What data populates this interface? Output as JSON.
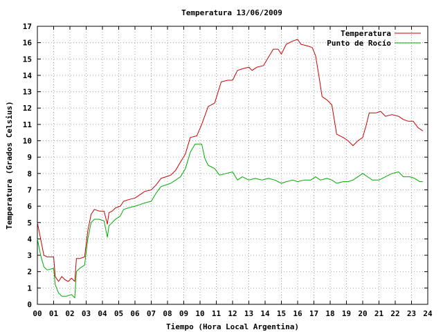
{
  "chart_data": {
    "type": "line",
    "title": "Temperatura 13/06/2009",
    "xlabel": "Tiempo (Hora Local Argentina)",
    "ylabel": "Temperatura (Grados Celsius)",
    "xlim": [
      0,
      24
    ],
    "ylim": [
      0,
      17
    ],
    "x_ticks": [
      "00",
      "01",
      "02",
      "03",
      "04",
      "05",
      "06",
      "07",
      "08",
      "09",
      "10",
      "11",
      "12",
      "13",
      "14",
      "15",
      "16",
      "17",
      "18",
      "19",
      "20",
      "21",
      "22",
      "23",
      "24"
    ],
    "y_ticks": [
      "0",
      "1",
      "2",
      "3",
      "4",
      "5",
      "6",
      "7",
      "8",
      "9",
      "10",
      "11",
      "12",
      "13",
      "14",
      "15",
      "16",
      "17"
    ],
    "grid": true,
    "legend_position": "top-right",
    "series": [
      {
        "name": "Temperatura",
        "color": "#cc0000",
        "points": [
          [
            0.0,
            5.0
          ],
          [
            0.2,
            4.0
          ],
          [
            0.4,
            3.0
          ],
          [
            0.6,
            2.9
          ],
          [
            1.0,
            2.9
          ],
          [
            1.1,
            1.7
          ],
          [
            1.3,
            1.4
          ],
          [
            1.5,
            1.7
          ],
          [
            1.7,
            1.5
          ],
          [
            1.9,
            1.4
          ],
          [
            2.1,
            1.6
          ],
          [
            2.3,
            1.4
          ],
          [
            2.4,
            2.8
          ],
          [
            2.6,
            2.8
          ],
          [
            2.9,
            2.9
          ],
          [
            3.1,
            4.5
          ],
          [
            3.3,
            5.5
          ],
          [
            3.5,
            5.8
          ],
          [
            3.8,
            5.7
          ],
          [
            4.1,
            5.7
          ],
          [
            4.3,
            4.9
          ],
          [
            4.4,
            5.6
          ],
          [
            4.6,
            5.7
          ],
          [
            4.8,
            5.9
          ],
          [
            5.1,
            6.0
          ],
          [
            5.3,
            6.3
          ],
          [
            5.6,
            6.4
          ],
          [
            6.0,
            6.5
          ],
          [
            6.3,
            6.7
          ],
          [
            6.6,
            6.9
          ],
          [
            7.0,
            7.0
          ],
          [
            7.3,
            7.3
          ],
          [
            7.6,
            7.7
          ],
          [
            7.9,
            7.8
          ],
          [
            8.2,
            7.9
          ],
          [
            8.5,
            8.2
          ],
          [
            8.8,
            8.7
          ],
          [
            9.1,
            9.2
          ],
          [
            9.4,
            10.2
          ],
          [
            9.8,
            10.3
          ],
          [
            10.1,
            11.0
          ],
          [
            10.5,
            12.1
          ],
          [
            10.9,
            12.3
          ],
          [
            11.3,
            13.6
          ],
          [
            11.7,
            13.7
          ],
          [
            12.0,
            13.7
          ],
          [
            12.3,
            14.3
          ],
          [
            12.6,
            14.4
          ],
          [
            13.0,
            14.5
          ],
          [
            13.2,
            14.3
          ],
          [
            13.5,
            14.5
          ],
          [
            13.9,
            14.6
          ],
          [
            14.2,
            15.1
          ],
          [
            14.5,
            15.6
          ],
          [
            14.8,
            15.6
          ],
          [
            15.0,
            15.3
          ],
          [
            15.3,
            15.9
          ],
          [
            15.7,
            16.1
          ],
          [
            16.0,
            16.2
          ],
          [
            16.2,
            15.9
          ],
          [
            16.6,
            15.8
          ],
          [
            16.9,
            15.7
          ],
          [
            17.1,
            15.2
          ],
          [
            17.3,
            14.0
          ],
          [
            17.5,
            12.7
          ],
          [
            17.8,
            12.5
          ],
          [
            18.1,
            12.2
          ],
          [
            18.4,
            10.4
          ],
          [
            18.8,
            10.2
          ],
          [
            19.1,
            10.0
          ],
          [
            19.4,
            9.7
          ],
          [
            19.7,
            10.0
          ],
          [
            20.0,
            10.2
          ],
          [
            20.2,
            10.9
          ],
          [
            20.4,
            11.7
          ],
          [
            20.8,
            11.7
          ],
          [
            21.1,
            11.8
          ],
          [
            21.4,
            11.5
          ],
          [
            21.8,
            11.6
          ],
          [
            22.2,
            11.5
          ],
          [
            22.5,
            11.3
          ],
          [
            22.8,
            11.2
          ],
          [
            23.1,
            11.2
          ],
          [
            23.4,
            10.8
          ],
          [
            23.7,
            10.6
          ]
        ]
      },
      {
        "name": "Punto de Rocío",
        "color": "#00aa00",
        "points": [
          [
            0.0,
            4.0
          ],
          [
            0.2,
            3.0
          ],
          [
            0.4,
            2.3
          ],
          [
            0.6,
            2.1
          ],
          [
            1.0,
            2.2
          ],
          [
            1.1,
            1.2
          ],
          [
            1.3,
            0.7
          ],
          [
            1.5,
            0.5
          ],
          [
            1.8,
            0.5
          ],
          [
            2.1,
            0.6
          ],
          [
            2.3,
            0.4
          ],
          [
            2.4,
            2.0
          ],
          [
            2.6,
            2.2
          ],
          [
            2.9,
            2.4
          ],
          [
            3.1,
            4.0
          ],
          [
            3.3,
            5.0
          ],
          [
            3.5,
            5.2
          ],
          [
            3.8,
            5.2
          ],
          [
            4.1,
            5.1
          ],
          [
            4.3,
            4.1
          ],
          [
            4.4,
            4.8
          ],
          [
            4.6,
            5.0
          ],
          [
            4.8,
            5.2
          ],
          [
            5.1,
            5.4
          ],
          [
            5.3,
            5.8
          ],
          [
            5.6,
            5.9
          ],
          [
            6.0,
            6.0
          ],
          [
            6.3,
            6.1
          ],
          [
            6.6,
            6.2
          ],
          [
            7.0,
            6.3
          ],
          [
            7.3,
            6.8
          ],
          [
            7.6,
            7.2
          ],
          [
            7.9,
            7.3
          ],
          [
            8.2,
            7.4
          ],
          [
            8.5,
            7.6
          ],
          [
            8.8,
            7.8
          ],
          [
            9.1,
            8.3
          ],
          [
            9.4,
            9.3
          ],
          [
            9.7,
            9.8
          ],
          [
            10.1,
            9.8
          ],
          [
            10.3,
            8.9
          ],
          [
            10.5,
            8.5
          ],
          [
            10.9,
            8.3
          ],
          [
            11.2,
            7.9
          ],
          [
            11.6,
            8.0
          ],
          [
            12.0,
            8.1
          ],
          [
            12.3,
            7.6
          ],
          [
            12.6,
            7.8
          ],
          [
            13.0,
            7.6
          ],
          [
            13.4,
            7.7
          ],
          [
            13.8,
            7.6
          ],
          [
            14.2,
            7.7
          ],
          [
            14.6,
            7.6
          ],
          [
            15.0,
            7.4
          ],
          [
            15.3,
            7.5
          ],
          [
            15.7,
            7.6
          ],
          [
            16.0,
            7.5
          ],
          [
            16.4,
            7.6
          ],
          [
            16.8,
            7.6
          ],
          [
            17.1,
            7.8
          ],
          [
            17.4,
            7.6
          ],
          [
            17.8,
            7.7
          ],
          [
            18.1,
            7.6
          ],
          [
            18.4,
            7.4
          ],
          [
            18.8,
            7.5
          ],
          [
            19.1,
            7.5
          ],
          [
            19.4,
            7.6
          ],
          [
            19.7,
            7.8
          ],
          [
            20.0,
            8.0
          ],
          [
            20.3,
            7.8
          ],
          [
            20.6,
            7.6
          ],
          [
            21.0,
            7.6
          ],
          [
            21.4,
            7.8
          ],
          [
            21.8,
            8.0
          ],
          [
            22.2,
            8.1
          ],
          [
            22.5,
            7.8
          ],
          [
            22.9,
            7.8
          ],
          [
            23.2,
            7.7
          ],
          [
            23.5,
            7.5
          ],
          [
            23.7,
            7.5
          ]
        ]
      }
    ]
  }
}
